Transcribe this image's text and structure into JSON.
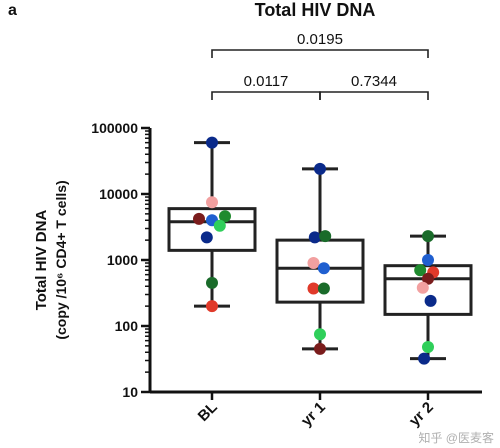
{
  "panel_label": "a",
  "watermark": "知乎 @医麦客",
  "chart_data": {
    "type": "box",
    "title": "Total HIV DNA",
    "ylabel_line1": "Total HIV DNA",
    "ylabel_line2": "(copy /10⁶ CD4+ T cells)",
    "yscale": "log",
    "ylim": [
      10,
      100000
    ],
    "yticks": [
      {
        "value": 10,
        "label": "10"
      },
      {
        "value": 100,
        "label": "100"
      },
      {
        "value": 1000,
        "label": "1000"
      },
      {
        "value": 10000,
        "label": "10000"
      },
      {
        "value": 100000,
        "label": "100000"
      }
    ],
    "categories": [
      "BL",
      "yr 1",
      "yr 2"
    ],
    "boxes": [
      {
        "category": "BL",
        "min": 200,
        "q1": 1400,
        "median": 3800,
        "q3": 6000,
        "max": 60000
      },
      {
        "category": "yr 1",
        "min": 45,
        "q1": 230,
        "median": 750,
        "q3": 2000,
        "max": 24000
      },
      {
        "category": "yr 2",
        "min": 32,
        "q1": 150,
        "median": 520,
        "q3": 820,
        "max": 2300
      }
    ],
    "points": [
      {
        "category": "BL",
        "color": "#0a2a8a",
        "y": 60000,
        "offset": 0
      },
      {
        "category": "BL",
        "color": "#f2a0a0",
        "y": 7500,
        "offset": 0
      },
      {
        "category": "BL",
        "color": "#7a1c1c",
        "y": 4200,
        "offset": -1
      },
      {
        "category": "BL",
        "color": "#1f8a2e",
        "y": 4600,
        "offset": 1
      },
      {
        "category": "BL",
        "color": "#1f5fd0",
        "y": 4000,
        "offset": 0
      },
      {
        "category": "BL",
        "color": "#2fcf5a",
        "y": 3300,
        "offset": 0.6
      },
      {
        "category": "BL",
        "color": "#0a2a8a",
        "y": 2200,
        "offset": -0.4
      },
      {
        "category": "BL",
        "color": "#1a6b2a",
        "y": 450,
        "offset": 0
      },
      {
        "category": "BL",
        "color": "#e03a2a",
        "y": 200,
        "offset": 0
      },
      {
        "category": "yr 1",
        "color": "#0a2a8a",
        "y": 24000,
        "offset": 0
      },
      {
        "category": "yr 1",
        "color": "#0a2a8a",
        "y": 2200,
        "offset": -0.4
      },
      {
        "category": "yr 1",
        "color": "#1a6b2a",
        "y": 2300,
        "offset": 0.4
      },
      {
        "category": "yr 1",
        "color": "#f2a0a0",
        "y": 900,
        "offset": -0.5
      },
      {
        "category": "yr 1",
        "color": "#1f5fd0",
        "y": 750,
        "offset": 0.3
      },
      {
        "category": "yr 1",
        "color": "#e03a2a",
        "y": 370,
        "offset": -0.5
      },
      {
        "category": "yr 1",
        "color": "#1a6b2a",
        "y": 370,
        "offset": 0.3
      },
      {
        "category": "yr 1",
        "color": "#2fcf5a",
        "y": 75,
        "offset": 0
      },
      {
        "category": "yr 1",
        "color": "#7a1c1c",
        "y": 45,
        "offset": 0
      },
      {
        "category": "yr 2",
        "color": "#1a6b2a",
        "y": 2300,
        "offset": 0
      },
      {
        "category": "yr 2",
        "color": "#1f5fd0",
        "y": 1000,
        "offset": 0
      },
      {
        "category": "yr 2",
        "color": "#1f8a2e",
        "y": 700,
        "offset": -0.6
      },
      {
        "category": "yr 2",
        "color": "#e03a2a",
        "y": 650,
        "offset": 0.4
      },
      {
        "category": "yr 2",
        "color": "#7a1c1c",
        "y": 520,
        "offset": 0
      },
      {
        "category": "yr 2",
        "color": "#f2a0a0",
        "y": 380,
        "offset": -0.4
      },
      {
        "category": "yr 2",
        "color": "#0a2a8a",
        "y": 240,
        "offset": 0.2
      },
      {
        "category": "yr 2",
        "color": "#2fcf5a",
        "y": 48,
        "offset": 0
      },
      {
        "category": "yr 2",
        "color": "#0a2a8a",
        "y": 32,
        "offset": -0.3
      }
    ],
    "significance": [
      {
        "from": "BL",
        "to": "yr 2",
        "label": "0.0195",
        "tier": 0
      },
      {
        "from": "yr 1",
        "to": "yr 2",
        "label": "0.7344",
        "tier": 1
      },
      {
        "from": "BL",
        "to": "yr 1",
        "label": "0.0117",
        "tier": 2
      }
    ],
    "grid": false
  }
}
